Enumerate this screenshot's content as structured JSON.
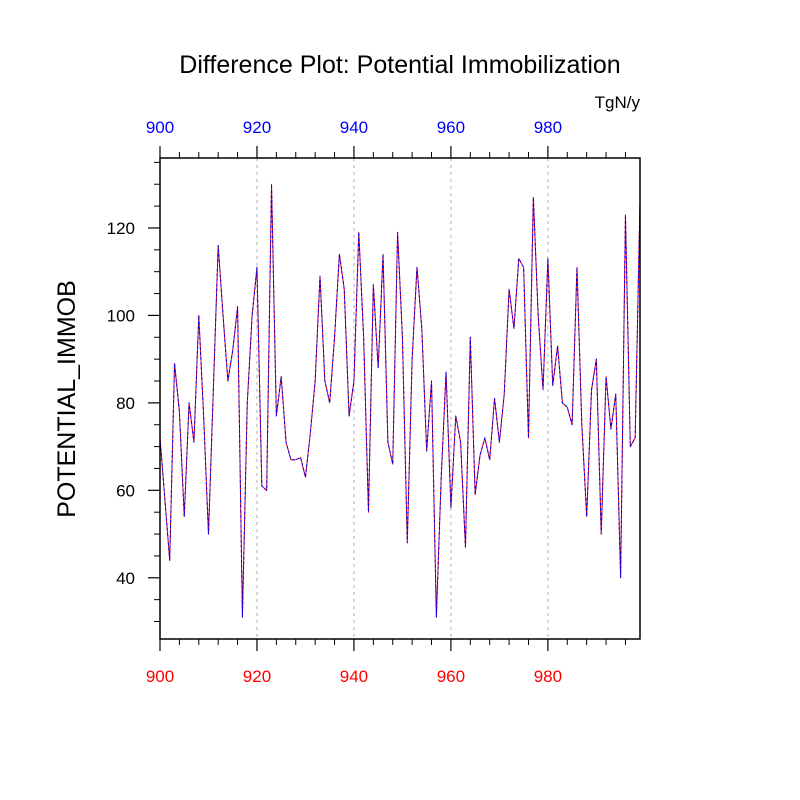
{
  "chart_data": {
    "type": "line",
    "title": "Difference Plot: Potential Immobilization",
    "units": "TgN/y",
    "ylabel": "POTENTIAL_IMMOB",
    "xlabel": "",
    "xlim": [
      900,
      999
    ],
    "ylim": [
      26,
      136
    ],
    "x_ticks": [
      900,
      920,
      940,
      960,
      980
    ],
    "x_tick_labels": [
      "900",
      "920",
      "940",
      "960",
      "980"
    ],
    "top_x_tick_labels": [
      "900",
      "920",
      "940",
      "960",
      "980"
    ],
    "y_ticks": [
      40,
      60,
      80,
      100,
      120
    ],
    "y_tick_labels": [
      "40",
      "60",
      "80",
      "100",
      "120"
    ],
    "grid": "vertical dashed at major x ticks",
    "colors": {
      "bottom_axis_labels": "#ff0000",
      "top_axis_labels": "#0000ff",
      "series_a": "#ff0000",
      "series_b": "#0000ff",
      "grid": "#b0b0b0"
    },
    "x_start": 900,
    "series": [
      {
        "name": "series_a",
        "values": [
          72,
          58,
          44,
          89,
          78,
          54,
          80,
          71,
          100,
          77,
          50,
          83,
          116,
          100,
          85,
          92,
          102,
          31,
          80,
          100,
          111,
          61,
          60,
          130,
          77,
          86,
          71,
          67,
          67,
          67.5,
          63,
          73,
          85,
          109,
          85,
          80,
          95,
          114,
          106,
          77,
          85,
          119,
          95,
          55,
          107,
          88,
          114,
          71,
          66,
          119,
          95,
          48,
          90,
          111,
          97,
          69,
          85,
          31,
          63,
          87,
          56,
          77,
          71,
          47,
          95,
          59,
          68,
          72,
          67,
          81,
          71,
          82,
          106,
          97,
          113,
          111,
          72,
          127,
          100,
          83,
          113,
          84,
          93,
          80,
          79,
          75,
          111,
          75,
          54,
          83,
          90,
          50,
          86,
          74,
          82,
          40,
          123,
          70,
          72,
          126
        ]
      },
      {
        "name": "series_b",
        "values": [
          72,
          58,
          44,
          89,
          78,
          54,
          80,
          71,
          100,
          77,
          50,
          83,
          116,
          100,
          85,
          92,
          102,
          31,
          80,
          100,
          111,
          61,
          60,
          130,
          77,
          86,
          71,
          67,
          67,
          67.5,
          63,
          73,
          85,
          109,
          85,
          80,
          95,
          114,
          106,
          77,
          85,
          119,
          95,
          55,
          107,
          88,
          114,
          71,
          66,
          119,
          95,
          48,
          90,
          111,
          97,
          69,
          85,
          31,
          63,
          87,
          56,
          77,
          71,
          47,
          95,
          59,
          68,
          72,
          67,
          81,
          71,
          82,
          106,
          97,
          113,
          111,
          72,
          127,
          100,
          83,
          113,
          84,
          93,
          80,
          79,
          75,
          111,
          75,
          54,
          83,
          90,
          50,
          86,
          74,
          82,
          40,
          123,
          70,
          72,
          126
        ]
      }
    ]
  }
}
